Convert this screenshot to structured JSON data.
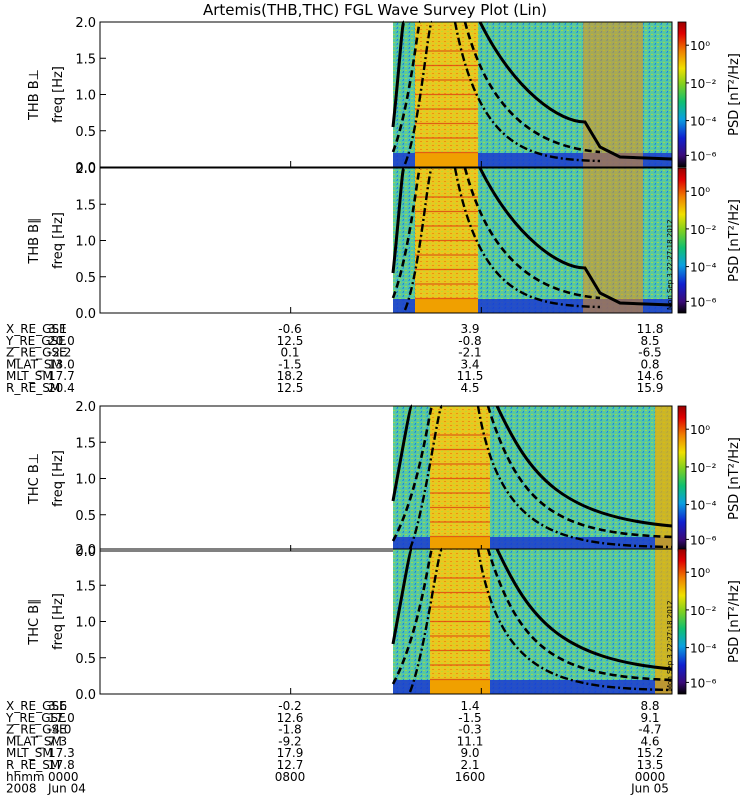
{
  "title": "Artemis(THB,THC) FGL Wave Survey Plot (Lin)",
  "colors": {
    "axis": "#000000",
    "background": "#ffffff"
  },
  "chart_data": {
    "type": "heatmap",
    "title": "Artemis(THB,THC) FGL Wave Survey Plot (Lin)",
    "panels": [
      {
        "probe": "THB",
        "component": "B⊥",
        "ylabel": "THB B⊥",
        "yunit": "freq [Hz]",
        "ylim": [
          0,
          2.0
        ],
        "yticks": [
          "0.0",
          "0.5",
          "1.0",
          "1.5",
          "2.0"
        ],
        "colorbar_label": "PSD [nT²/Hz]"
      },
      {
        "probe": "THB",
        "component": "B∥",
        "ylabel": "THB B∥",
        "yunit": "freq [Hz]",
        "ylim": [
          0,
          2.0
        ],
        "yticks": [
          "0.0",
          "0.5",
          "1.0",
          "1.5",
          "2.0"
        ],
        "colorbar_label": "PSD [nT²/Hz]"
      },
      {
        "probe": "THC",
        "component": "B⊥",
        "ylabel": "THC B⊥",
        "yunit": "freq [Hz]",
        "ylim": [
          0,
          2.0
        ],
        "yticks": [
          "0.0",
          "0.5",
          "1.0",
          "1.5",
          "2.0"
        ],
        "colorbar_label": "PSD [nT²/Hz]"
      },
      {
        "probe": "THC",
        "component": "B∥",
        "ylabel": "THC B∥",
        "yunit": "freq [Hz]",
        "ylim": [
          0,
          2.0
        ],
        "yticks": [
          "0.0",
          "0.5",
          "1.0",
          "1.5",
          "2.0"
        ],
        "colorbar_label": "PSD [nT²/Hz]"
      }
    ],
    "colorbar": {
      "scale": "log",
      "ticks": [
        "10⁰",
        "10⁻²",
        "10⁻⁴",
        "10⁻⁶"
      ],
      "range": [
        1e-07,
        10.0
      ]
    },
    "colorbar_side_label": "Mon Sep  3 22:27:18 2012",
    "x_axis": {
      "range": [
        "0000",
        "0000"
      ],
      "ticks": [
        "0000",
        "0800",
        "1600",
        "0000"
      ],
      "date_ticks": [
        "Jun 04",
        "Jun 05"
      ],
      "year": "2008"
    },
    "orbit_table_thb": {
      "rows": [
        {
          "label": "X_RE_GSE",
          "values": [
            "3.1",
            "-0.6",
            "3.9",
            "11.8"
          ]
        },
        {
          "label": "Y_RE_GSE",
          "values": [
            "20.0",
            "12.5",
            "-0.8",
            "8.5"
          ]
        },
        {
          "label": "Z_RE_GSE",
          "values": [
            "-2.2",
            "0.1",
            "-2.1",
            "-6.5"
          ]
        },
        {
          "label": "MLAT_SM",
          "values": [
            "13.0",
            "-1.5",
            "3.4",
            "0.8"
          ]
        },
        {
          "label": "MLT_SM",
          "values": [
            "17.7",
            "18.2",
            "11.5",
            "14.6"
          ]
        },
        {
          "label": "R_RE_SM",
          "values": [
            "20.4",
            "12.5",
            "4.5",
            "15.9"
          ]
        }
      ]
    },
    "orbit_table_thc": {
      "rows": [
        {
          "label": "X_RE_GSE",
          "values": [
            "3.6",
            "-0.2",
            "1.4",
            "8.8"
          ]
        },
        {
          "label": "Y_RE_GSE",
          "values": [
            "17.0",
            "12.6",
            "-1.5",
            "9.1"
          ]
        },
        {
          "label": "Z_RE_GSE",
          "values": [
            "-4.0",
            "-1.8",
            "-0.3",
            "-4.7"
          ]
        },
        {
          "label": "MLAT_SM",
          "values": [
            "7.3",
            "-9.2",
            "11.1",
            "4.6"
          ]
        },
        {
          "label": "MLT_SM",
          "values": [
            "17.3",
            "17.9",
            "9.0",
            "15.2"
          ]
        },
        {
          "label": "R_RE_SM",
          "values": [
            "17.8",
            "12.7",
            "2.1",
            "13.5"
          ]
        }
      ]
    },
    "time_row": {
      "label": "hhmm",
      "values": [
        "0000",
        "0800",
        "1600",
        "0000"
      ]
    },
    "date_row": {
      "label": "2008",
      "values": [
        "Jun 04",
        "",
        "",
        "Jun 05"
      ]
    }
  }
}
